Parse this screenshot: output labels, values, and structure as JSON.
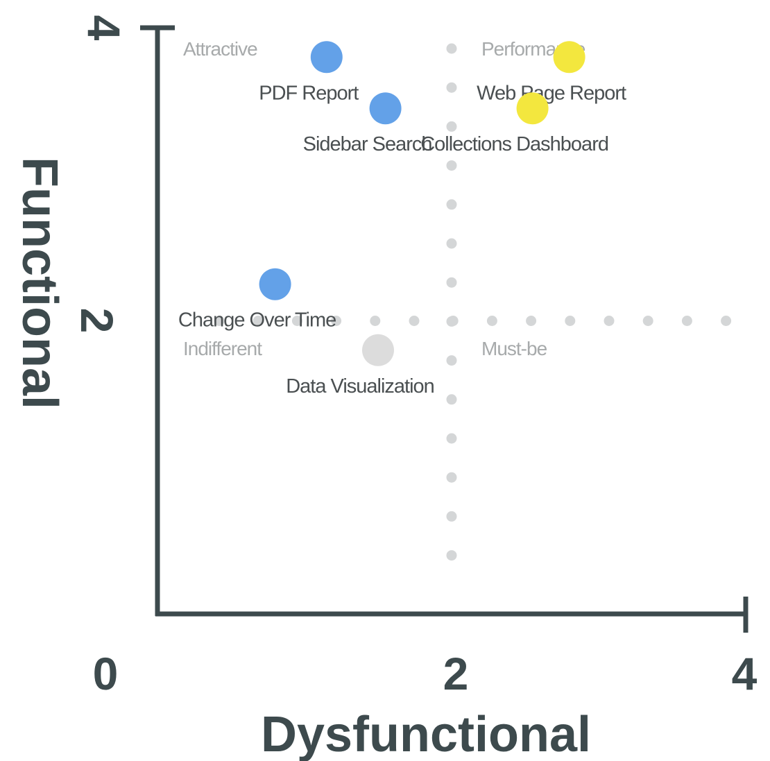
{
  "chart_data": {
    "type": "scatter",
    "xlabel": "Dysfunctional",
    "ylabel": "Functional",
    "xlim": [
      0,
      4
    ],
    "ylim": [
      0,
      4
    ],
    "x_ticks": [
      "0",
      "2",
      "4"
    ],
    "y_ticks": [
      "2",
      "4"
    ],
    "grid": false,
    "divider_lines": {
      "x": 2,
      "y": 2,
      "style": "dotted"
    },
    "quadrants": [
      {
        "name": "Attractive"
      },
      {
        "name": "Performance"
      },
      {
        "name": "Indifferent"
      },
      {
        "name": "Must-be"
      }
    ],
    "points": [
      {
        "label": "PDF Report",
        "x": 1.15,
        "y": 3.8,
        "color": "#63a1e8"
      },
      {
        "label": "Web Page Report",
        "x": 2.8,
        "y": 3.8,
        "color": "#f3e73e"
      },
      {
        "label": "Sidebar Search",
        "x": 1.55,
        "y": 3.45,
        "color": "#63a1e8"
      },
      {
        "label": "Collections Dashboard",
        "x": 2.55,
        "y": 3.45,
        "color": "#f3e73e"
      },
      {
        "label": "Change Over Time",
        "x": 0.8,
        "y": 2.25,
        "color": "#63a1e8"
      },
      {
        "label": "Data Visualization",
        "x": 1.5,
        "y": 1.8,
        "color": "#dcdcdc"
      }
    ]
  },
  "colors": {
    "axis": "#3d4a4d",
    "quadrant_label": "#a7aaab",
    "divider": "#d4d6d7",
    "point_label": "#4a4f51"
  }
}
